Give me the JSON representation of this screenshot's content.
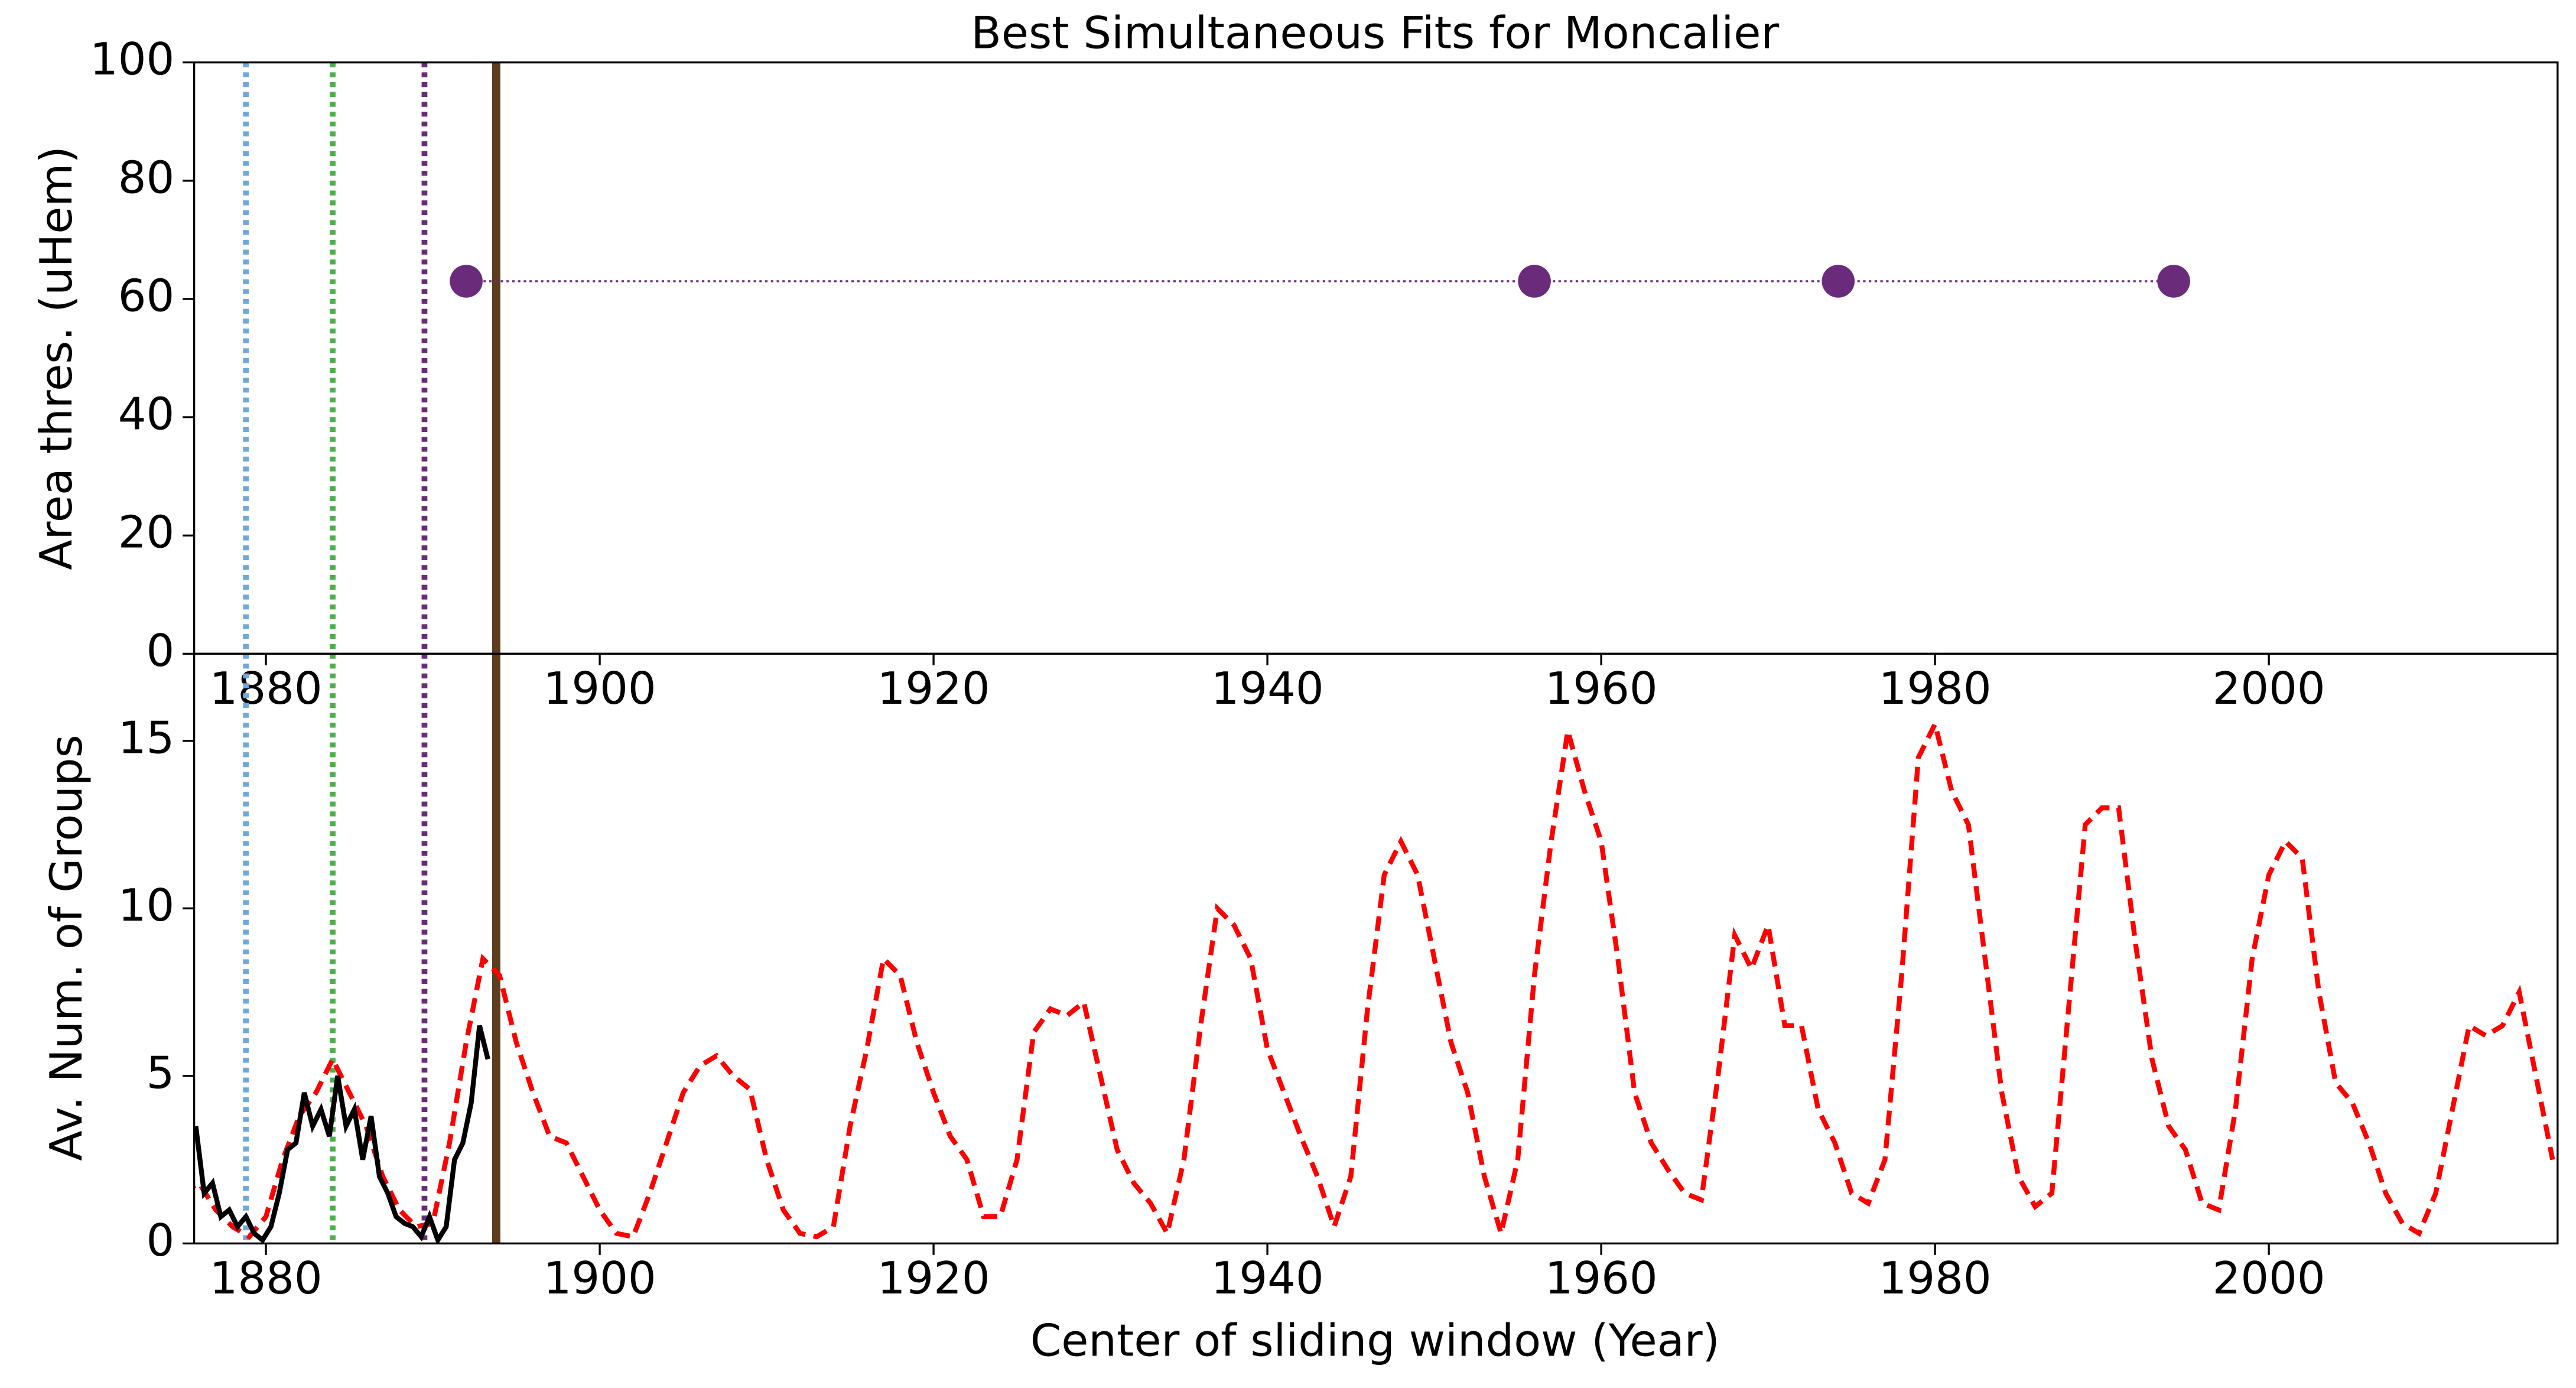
{
  "chart_data": [
    {
      "type": "scatter",
      "title": "Best Simultaneous Fits for Moncalier",
      "y_label": "Area thres. (uHem)",
      "xlim": [
        1875.7,
        2017.3
      ],
      "ylim": [
        0,
        100
      ],
      "xticks": [
        1880,
        1900,
        1920,
        1940,
        1960,
        1980,
        2000
      ],
      "yticks": [
        0,
        20,
        40,
        60,
        80,
        100
      ],
      "vlines": [
        {
          "x": 1878.8,
          "color": "#6fa8dc"
        },
        {
          "x": 1884.0,
          "color": "#4daf4a"
        },
        {
          "x": 1889.5,
          "color": "#6a2c7a"
        },
        {
          "x": 1893.8,
          "color": "#5c3d1e"
        }
      ],
      "series": [
        {
          "color": "#6a2c7a",
          "line_style": "dotted",
          "x": [
            1892.0,
            1956.0,
            1974.2,
            1994.3
          ],
          "values": [
            63,
            63,
            63,
            63
          ]
        }
      ]
    },
    {
      "type": "line",
      "x_label": "Center of sliding window (Year)",
      "y_label": "Av. Num. of Groups",
      "xlim": [
        1875.7,
        2017.3
      ],
      "ylim": [
        0,
        17.6
      ],
      "xticks": [
        1880,
        1900,
        1920,
        1940,
        1960,
        1980,
        2000
      ],
      "yticks": [
        0,
        5,
        10,
        15
      ],
      "vlines": [
        {
          "x": 1878.8,
          "color": "#6fa8dc"
        },
        {
          "x": 1884.0,
          "color": "#4daf4a"
        },
        {
          "x": 1889.5,
          "color": "#6a2c7a"
        },
        {
          "x": 1893.8,
          "color": "#5c3d1e"
        }
      ],
      "series": [
        {
          "color": "#ff0000",
          "line_style": "dashed",
          "x": [
            1875,
            1876,
            1877,
            1878,
            1879,
            1880,
            1881,
            1882,
            1883,
            1884,
            1885,
            1886,
            1887,
            1888,
            1889,
            1890,
            1891,
            1892,
            1893,
            1894,
            1895,
            1896,
            1897,
            1898,
            1899,
            1900,
            1901,
            1902,
            1903,
            1904,
            1905,
            1906,
            1907,
            1908,
            1909,
            1910,
            1911,
            1912,
            1913,
            1914,
            1915,
            1916,
            1917,
            1918,
            1919,
            1920,
            1921,
            1922,
            1923,
            1924,
            1925,
            1926,
            1927,
            1928,
            1929,
            1930,
            1931,
            1932,
            1933,
            1934,
            1935,
            1936,
            1937,
            1938,
            1939,
            1940,
            1941,
            1942,
            1943,
            1944,
            1945,
            1946,
            1947,
            1948,
            1949,
            1950,
            1951,
            1952,
            1953,
            1954,
            1955,
            1956,
            1957,
            1958,
            1959,
            1960,
            1961,
            1962,
            1963,
            1964,
            1965,
            1966,
            1967,
            1968,
            1969,
            1970,
            1971,
            1972,
            1973,
            1974,
            1975,
            1976,
            1977,
            1978,
            1979,
            1980,
            1981,
            1982,
            1983,
            1984,
            1985,
            1986,
            1987,
            1988,
            1989,
            1990,
            1991,
            1992,
            1993,
            1994,
            1995,
            1996,
            1997,
            1998,
            1999,
            2000,
            2001,
            2002,
            2003,
            2004,
            2005,
            2006,
            2007,
            2008,
            2009,
            2010,
            2011,
            2012,
            2013,
            2014,
            2015,
            2016,
            2017
          ],
          "values": [
            1.5,
            1.8,
            1.0,
            0.5,
            0.2,
            0.8,
            2.5,
            3.8,
            4.5,
            5.5,
            4.5,
            3.5,
            2.0,
            1.0,
            0.5,
            0.6,
            3.0,
            6.0,
            8.5,
            8.0,
            6.0,
            4.5,
            3.2,
            3.0,
            2.0,
            1.0,
            0.3,
            0.2,
            1.5,
            3.0,
            4.5,
            5.3,
            5.6,
            5.0,
            4.6,
            2.5,
            1.0,
            0.3,
            0.2,
            0.5,
            3.5,
            5.8,
            8.5,
            8.0,
            6.0,
            4.5,
            3.2,
            2.5,
            0.8,
            0.8,
            2.5,
            6.3,
            7.0,
            6.8,
            7.2,
            5.0,
            2.8,
            1.8,
            1.2,
            0.3,
            2.5,
            6.5,
            10.0,
            9.5,
            8.5,
            5.8,
            4.5,
            3.2,
            2.0,
            0.5,
            2.0,
            7.0,
            11.0,
            12.0,
            11.0,
            8.5,
            6.0,
            4.5,
            2.0,
            0.3,
            2.5,
            8.0,
            12.0,
            15.3,
            13.5,
            12.0,
            8.5,
            4.5,
            3.0,
            2.2,
            1.5,
            1.3,
            5.0,
            9.2,
            8.2,
            9.5,
            6.5,
            6.5,
            4.0,
            3.0,
            1.5,
            1.2,
            2.5,
            8.0,
            14.5,
            15.5,
            13.5,
            12.5,
            8.5,
            4.5,
            2.0,
            1.1,
            1.5,
            7.0,
            12.5,
            13.0,
            13.0,
            9.0,
            5.5,
            3.5,
            2.8,
            1.2,
            1.0,
            4.0,
            8.5,
            11.0,
            12.0,
            11.5,
            7.5,
            4.8,
            4.2,
            3.0,
            1.5,
            0.6,
            0.3,
            1.5,
            4.0,
            6.5,
            6.2,
            6.5,
            7.5,
            5.0,
            2.5
          ]
        },
        {
          "color": "#000000",
          "line_style": "solid",
          "x": [
            1875.8,
            1876.3,
            1876.8,
            1877.3,
            1877.8,
            1878.3,
            1878.8,
            1879.3,
            1879.8,
            1880.3,
            1880.8,
            1881.3,
            1881.8,
            1882.3,
            1882.8,
            1883.3,
            1883.8,
            1884.3,
            1884.8,
            1885.3,
            1885.8,
            1886.3,
            1886.8,
            1887.3,
            1887.8,
            1888.3,
            1888.8,
            1889.3,
            1889.8,
            1890.3,
            1890.8,
            1891.3,
            1891.8,
            1892.3,
            1892.8,
            1893.3
          ],
          "values": [
            3.5,
            1.5,
            1.8,
            0.8,
            1.0,
            0.5,
            0.8,
            0.3,
            0.1,
            0.5,
            1.5,
            2.8,
            3.0,
            4.5,
            3.5,
            4.0,
            3.2,
            5.0,
            3.5,
            4.0,
            2.5,
            3.8,
            2.0,
            1.5,
            0.8,
            0.6,
            0.5,
            0.2,
            0.8,
            0.1,
            0.5,
            2.5,
            3.0,
            4.2,
            6.5,
            5.5
          ]
        }
      ]
    }
  ]
}
